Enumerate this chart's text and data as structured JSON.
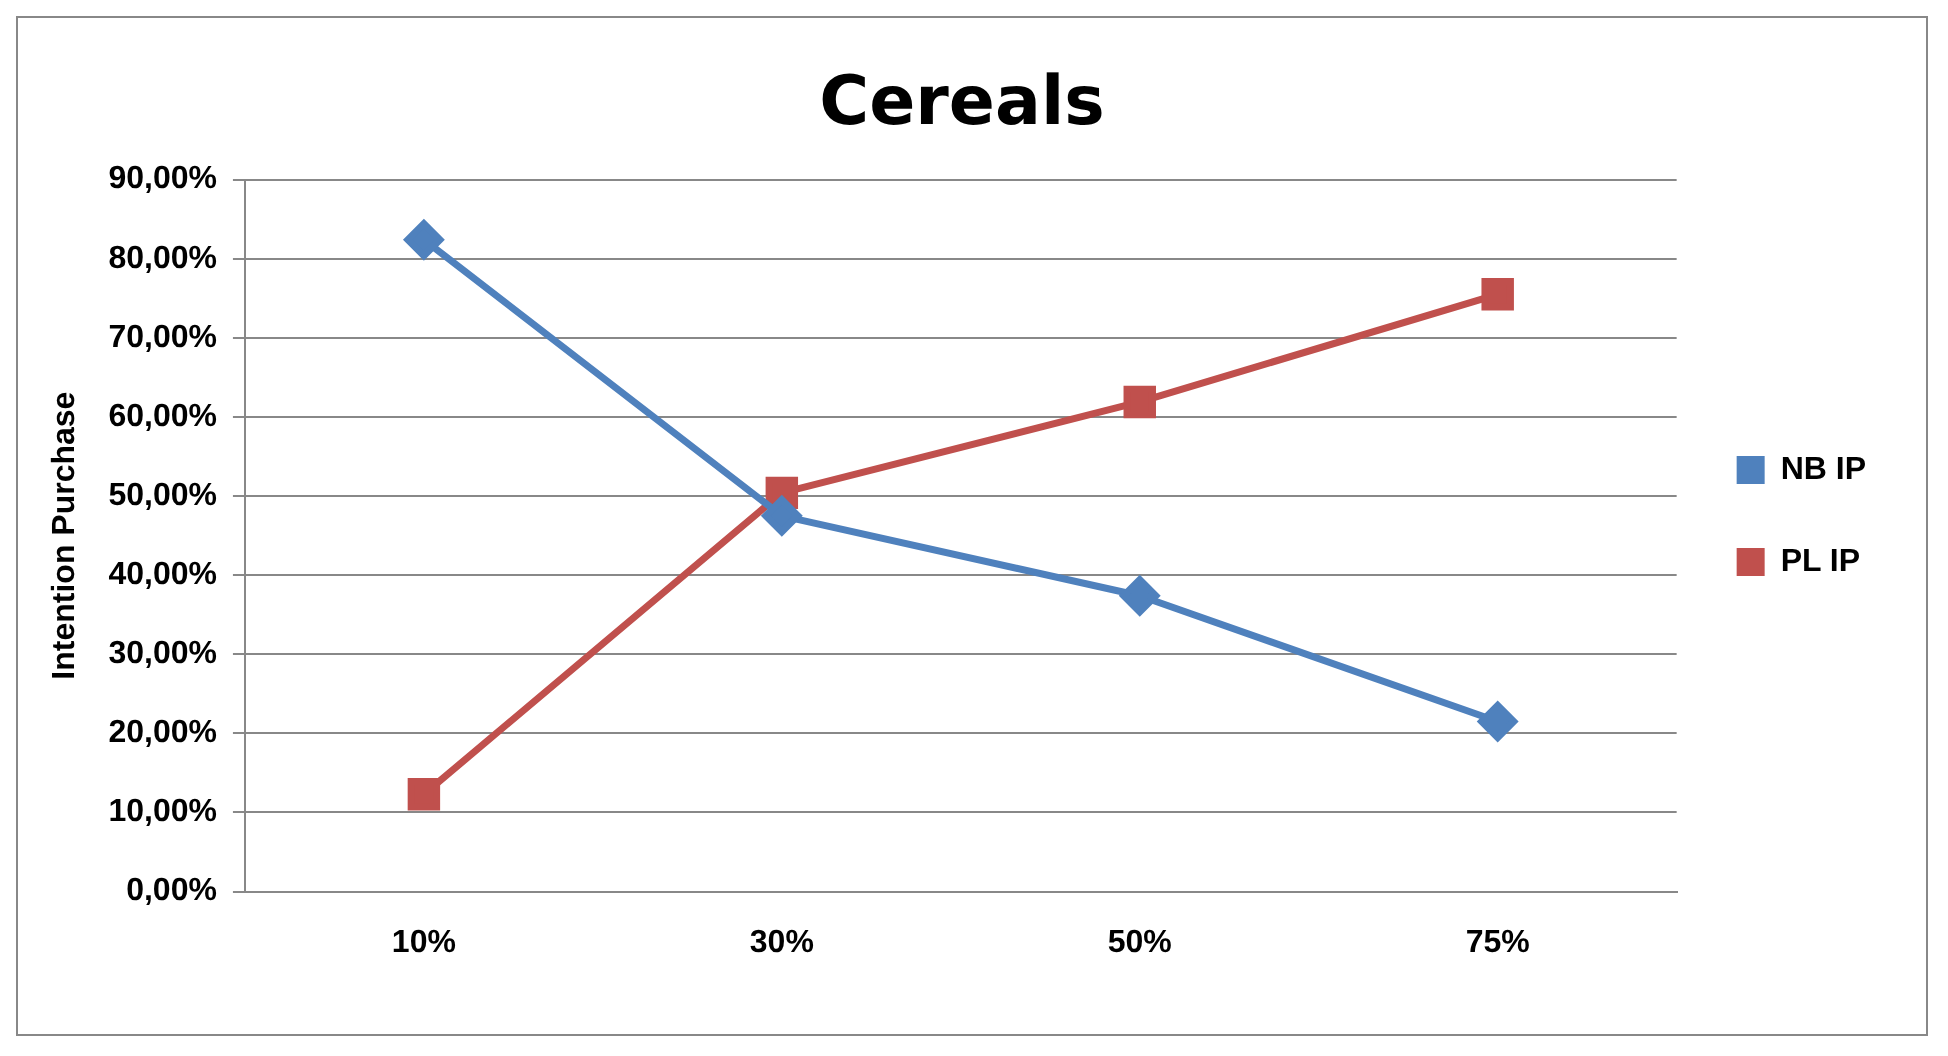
{
  "chart_data": {
    "type": "line",
    "title": "Cereals",
    "ylabel": "Intention Purchase",
    "categories": [
      "10%",
      "30%",
      "50%",
      "75%"
    ],
    "series": [
      {
        "name": "NB IP",
        "color": "#4f81bd",
        "values": [
          82.4,
          47.5,
          37.4,
          21.5
        ],
        "marker": "diamond"
      },
      {
        "name": "PL IP",
        "color": "#c0504d",
        "values": [
          12.3,
          50.4,
          61.9,
          75.5
        ],
        "marker": "square"
      }
    ],
    "ylim": [
      0,
      90
    ],
    "yticks": [
      {
        "value": 0,
        "label": "0,00%"
      },
      {
        "value": 10,
        "label": "10,00%"
      },
      {
        "value": 20,
        "label": "20,00%"
      },
      {
        "value": 30,
        "label": "30,00%"
      },
      {
        "value": 40,
        "label": "40,00%"
      },
      {
        "value": 50,
        "label": "50,00%"
      },
      {
        "value": 60,
        "label": "60,00%"
      },
      {
        "value": 70,
        "label": "70,00%"
      },
      {
        "value": 80,
        "label": "80,00%"
      },
      {
        "value": 90,
        "label": "90,00%"
      }
    ],
    "grid": "y",
    "legend": "right",
    "line_style": "solid"
  }
}
